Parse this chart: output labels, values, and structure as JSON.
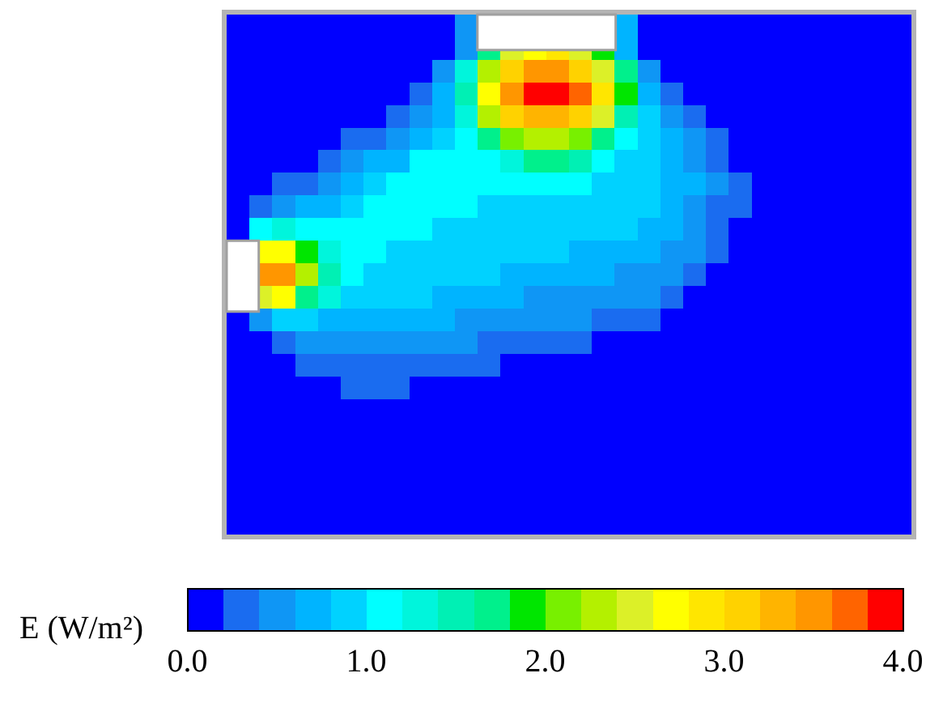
{
  "chart_data": {
    "type": "heatmap",
    "clabel": "E (W/m²)",
    "categories": [
      null,
      null,
      null,
      null,
      null,
      null,
      null,
      null,
      null,
      null,
      null,
      null,
      null,
      null,
      null,
      null,
      null,
      null,
      null,
      null,
      null,
      null,
      null,
      null,
      null,
      null,
      null,
      null,
      null,
      null
    ],
    "y_categories": [
      null,
      null,
      null,
      null,
      null,
      null,
      null,
      null,
      null,
      null,
      null,
      null,
      null,
      null,
      null,
      null,
      null,
      null,
      null,
      null,
      null,
      null,
      null
    ],
    "cells": [
      [
        0.1,
        0.1,
        0.1,
        0.1,
        0.1,
        0.1,
        0.1,
        0.1,
        0.1,
        0.1,
        0.5,
        null,
        null,
        null,
        null,
        null,
        null,
        0.7,
        0.1,
        0.1,
        0.1,
        0.1,
        0.1,
        0.1,
        0.1,
        0.1,
        0.1,
        0.1,
        0.1,
        0.1
      ],
      [
        0.1,
        0.1,
        0.1,
        0.1,
        0.1,
        0.1,
        0.1,
        0.1,
        0.1,
        0.1,
        0.5,
        null,
        null,
        null,
        null,
        null,
        null,
        0.7,
        0.1,
        0.1,
        0.1,
        0.1,
        0.1,
        0.1,
        0.1,
        0.1,
        0.1,
        0.1,
        0.1,
        0.1
      ],
      [
        0.1,
        0.1,
        0.1,
        0.1,
        0.1,
        0.1,
        0.1,
        0.1,
        0.1,
        0.5,
        1.3,
        2.3,
        3.1,
        3.5,
        3.5,
        3.1,
        2.5,
        1.7,
        0.5,
        0.1,
        0.1,
        0.1,
        0.1,
        0.1,
        0.1,
        0.1,
        0.1,
        0.1,
        0.1,
        0.1
      ],
      [
        0.1,
        0.1,
        0.1,
        0.1,
        0.1,
        0.1,
        0.1,
        0.1,
        0.3,
        0.7,
        1.5,
        2.7,
        3.5,
        3.9,
        3.9,
        3.7,
        2.9,
        1.9,
        0.7,
        0.3,
        0.1,
        0.1,
        0.1,
        0.1,
        0.1,
        0.1,
        0.1,
        0.1,
        0.1,
        0.1
      ],
      [
        0.1,
        0.1,
        0.1,
        0.1,
        0.1,
        0.1,
        0.1,
        0.3,
        0.5,
        0.7,
        1.3,
        2.3,
        3.1,
        3.3,
        3.3,
        3.1,
        2.5,
        1.5,
        0.9,
        0.5,
        0.3,
        0.1,
        0.1,
        0.1,
        0.1,
        0.1,
        0.1,
        0.1,
        0.1,
        0.1
      ],
      [
        0.1,
        0.1,
        0.1,
        0.1,
        0.1,
        0.3,
        0.3,
        0.5,
        0.7,
        0.9,
        1.1,
        1.7,
        2.1,
        2.3,
        2.3,
        2.1,
        1.7,
        1.1,
        0.9,
        0.7,
        0.5,
        0.3,
        0.1,
        0.1,
        0.1,
        0.1,
        0.1,
        0.1,
        0.1,
        0.1
      ],
      [
        0.1,
        0.1,
        0.1,
        0.1,
        0.3,
        0.5,
        0.7,
        0.7,
        1.1,
        1.1,
        1.1,
        1.1,
        1.3,
        1.7,
        1.7,
        1.5,
        1.1,
        0.9,
        0.9,
        0.7,
        0.5,
        0.3,
        0.1,
        0.1,
        0.1,
        0.1,
        0.1,
        0.1,
        0.1,
        0.1
      ],
      [
        0.1,
        0.1,
        0.3,
        0.3,
        0.5,
        0.7,
        0.9,
        1.1,
        1.1,
        1.1,
        1.1,
        1.1,
        1.1,
        1.1,
        1.1,
        1.1,
        0.9,
        0.9,
        0.9,
        0.7,
        0.7,
        0.5,
        0.3,
        0.1,
        0.1,
        0.1,
        0.1,
        0.1,
        0.1,
        0.1
      ],
      [
        0.1,
        0.3,
        0.5,
        0.7,
        0.7,
        0.9,
        1.1,
        1.1,
        1.1,
        1.1,
        1.1,
        0.9,
        0.9,
        0.9,
        0.9,
        0.9,
        0.9,
        0.9,
        0.9,
        0.7,
        0.5,
        0.3,
        0.3,
        0.1,
        0.1,
        0.1,
        0.1,
        0.1,
        0.1,
        0.1
      ],
      [
        0.1,
        1.1,
        1.3,
        1.1,
        1.1,
        1.1,
        1.1,
        1.1,
        1.1,
        0.9,
        0.9,
        0.9,
        0.9,
        0.9,
        0.9,
        0.9,
        0.9,
        0.9,
        0.7,
        0.7,
        0.5,
        0.3,
        0.1,
        0.1,
        0.1,
        0.1,
        0.1,
        0.1,
        0.1,
        0.1
      ],
      [
        null,
        2.7,
        2.7,
        1.9,
        1.3,
        1.1,
        1.1,
        0.9,
        0.9,
        0.9,
        0.9,
        0.9,
        0.9,
        0.9,
        0.9,
        0.7,
        0.7,
        0.7,
        0.7,
        0.5,
        0.5,
        0.3,
        0.1,
        0.1,
        0.1,
        0.1,
        0.1,
        0.1,
        0.1,
        0.1
      ],
      [
        null,
        3.5,
        3.5,
        2.3,
        1.5,
        1.1,
        0.9,
        0.9,
        0.9,
        0.9,
        0.9,
        0.9,
        0.7,
        0.7,
        0.7,
        0.7,
        0.7,
        0.5,
        0.5,
        0.5,
        0.3,
        0.1,
        0.1,
        0.1,
        0.1,
        0.1,
        0.1,
        0.1,
        0.1,
        0.1
      ],
      [
        null,
        2.5,
        2.7,
        1.7,
        1.3,
        0.9,
        0.9,
        0.9,
        0.9,
        0.7,
        0.7,
        0.7,
        0.7,
        0.5,
        0.5,
        0.5,
        0.5,
        0.5,
        0.5,
        0.3,
        0.1,
        0.1,
        0.1,
        0.1,
        0.1,
        0.1,
        0.1,
        0.1,
        0.1,
        0.1
      ],
      [
        0.1,
        0.5,
        0.9,
        0.9,
        0.7,
        0.7,
        0.7,
        0.7,
        0.7,
        0.7,
        0.5,
        0.5,
        0.5,
        0.5,
        0.5,
        0.5,
        0.3,
        0.3,
        0.3,
        0.1,
        0.1,
        0.1,
        0.1,
        0.1,
        0.1,
        0.1,
        0.1,
        0.1,
        0.1,
        0.1
      ],
      [
        0.1,
        0.1,
        0.3,
        0.5,
        0.5,
        0.5,
        0.5,
        0.5,
        0.5,
        0.5,
        0.5,
        0.3,
        0.3,
        0.3,
        0.3,
        0.3,
        0.1,
        0.1,
        0.1,
        0.1,
        0.1,
        0.1,
        0.1,
        0.1,
        0.1,
        0.1,
        0.1,
        0.1,
        0.1,
        0.1
      ],
      [
        0.1,
        0.1,
        0.1,
        0.3,
        0.3,
        0.3,
        0.3,
        0.3,
        0.3,
        0.3,
        0.3,
        0.3,
        0.1,
        0.1,
        0.1,
        0.1,
        0.1,
        0.1,
        0.1,
        0.1,
        0.1,
        0.1,
        0.1,
        0.1,
        0.1,
        0.1,
        0.1,
        0.1,
        0.1,
        0.1
      ],
      [
        0.1,
        0.1,
        0.1,
        0.1,
        0.1,
        0.3,
        0.3,
        0.3,
        0.1,
        0.1,
        0.1,
        0.1,
        0.1,
        0.1,
        0.1,
        0.1,
        0.1,
        0.1,
        0.1,
        0.1,
        0.1,
        0.1,
        0.1,
        0.1,
        0.1,
        0.1,
        0.1,
        0.1,
        0.1,
        0.1
      ],
      [
        0.1,
        0.1,
        0.1,
        0.1,
        0.1,
        0.1,
        0.1,
        0.1,
        0.1,
        0.1,
        0.1,
        0.1,
        0.1,
        0.1,
        0.1,
        0.1,
        0.1,
        0.1,
        0.1,
        0.1,
        0.1,
        0.1,
        0.1,
        0.1,
        0.1,
        0.1,
        0.1,
        0.1,
        0.1,
        0.1
      ],
      [
        0.1,
        0.1,
        0.1,
        0.1,
        0.1,
        0.1,
        0.1,
        0.1,
        0.1,
        0.1,
        0.1,
        0.1,
        0.1,
        0.1,
        0.1,
        0.1,
        0.1,
        0.1,
        0.1,
        0.1,
        0.1,
        0.1,
        0.1,
        0.1,
        0.1,
        0.1,
        0.1,
        0.1,
        0.1,
        0.1
      ],
      [
        0.1,
        0.1,
        0.1,
        0.1,
        0.1,
        0.1,
        0.1,
        0.1,
        0.1,
        0.1,
        0.1,
        0.1,
        0.1,
        0.1,
        0.1,
        0.1,
        0.1,
        0.1,
        0.1,
        0.1,
        0.1,
        0.1,
        0.1,
        0.1,
        0.1,
        0.1,
        0.1,
        0.1,
        0.1,
        0.1
      ],
      [
        0.1,
        0.1,
        0.1,
        0.1,
        0.1,
        0.1,
        0.1,
        0.1,
        0.1,
        0.1,
        0.1,
        0.1,
        0.1,
        0.1,
        0.1,
        0.1,
        0.1,
        0.1,
        0.1,
        0.1,
        0.1,
        0.1,
        0.1,
        0.1,
        0.1,
        0.1,
        0.1,
        0.1,
        0.1,
        0.1
      ],
      [
        0.1,
        0.1,
        0.1,
        0.1,
        0.1,
        0.1,
        0.1,
        0.1,
        0.1,
        0.1,
        0.1,
        0.1,
        0.1,
        0.1,
        0.1,
        0.1,
        0.1,
        0.1,
        0.1,
        0.1,
        0.1,
        0.1,
        0.1,
        0.1,
        0.1,
        0.1,
        0.1,
        0.1,
        0.1,
        0.1
      ],
      [
        0.1,
        0.1,
        0.1,
        0.1,
        0.1,
        0.1,
        0.1,
        0.1,
        0.1,
        0.1,
        0.1,
        0.1,
        0.1,
        0.1,
        0.1,
        0.1,
        0.1,
        0.1,
        0.1,
        0.1,
        0.1,
        0.1,
        0.1,
        0.1,
        0.1,
        0.1,
        0.1,
        0.1,
        0.1,
        0.1
      ]
    ],
    "clim": [
      0,
      4
    ],
    "cticks": [
      {
        "value": 0,
        "label": "0.0"
      },
      {
        "value": 1,
        "label": "1.0"
      },
      {
        "value": 2,
        "label": "2.0"
      },
      {
        "value": 3,
        "label": "3.0"
      },
      {
        "value": 4,
        "label": "4.0"
      }
    ],
    "colors": [
      "#0000ff",
      "#1a6cf0",
      "#0f96f5",
      "#00b4ff",
      "#00d2ff",
      "#00ffff",
      "#00f5dc",
      "#00f0b4",
      "#00f08c",
      "#00e600",
      "#78f000",
      "#b4f000",
      "#dcf028",
      "#ffff00",
      "#ffe600",
      "#ffd200",
      "#ffb400",
      "#ff9600",
      "#ff6400",
      "#ff0000"
    ]
  }
}
